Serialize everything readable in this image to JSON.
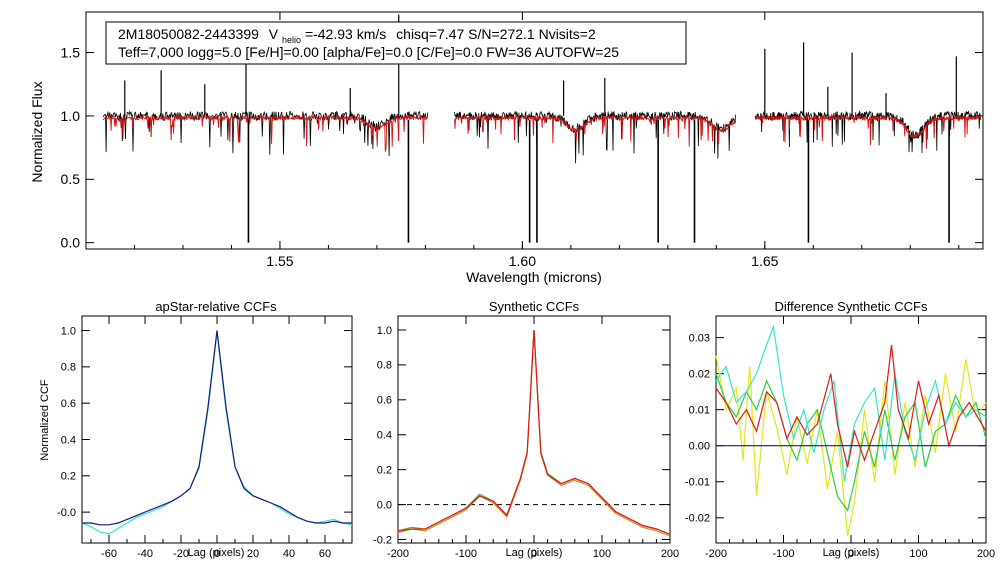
{
  "star": {
    "line1_id": "2M18050082-2443399",
    "v_prefix": "V",
    "v_sub": "helio",
    "v_value": "=-42.93 km/s",
    "line1_rest": "chisq=7.47  S/N=272.1  Nvisits=2",
    "line2": "Teff=7,000 logg=5.0 [Fe/H]=0.00 [alpha/Fe]=0.0 [C/Fe]=0.0 FW=36 AUTOFW=25"
  },
  "colors": {
    "observed": "#000000",
    "model": "#dd1111",
    "visit_cyan": "#33e6cc",
    "visit_navy": "#1a1a80",
    "yellow": "#e5e51a",
    "green": "#2ecc40",
    "orange": "#e08020",
    "red": "#e01818",
    "zero_line": "#000000"
  },
  "chart_data": [
    {
      "type": "line",
      "id": "spectrum",
      "xlabel": "Wavelength (microns)",
      "ylabel": "Normalized Flux",
      "xlim": [
        1.51,
        1.695
      ],
      "ylim": [
        -0.05,
        1.82
      ],
      "xticks": [
        1.55,
        1.6,
        1.65
      ],
      "xtick_labels": [
        "1.55",
        "1.60",
        "1.65"
      ],
      "yticks": [
        0.0,
        0.5,
        1.0,
        1.5
      ],
      "ytick_labels": [
        "0.0",
        "0.5",
        "1.0",
        "1.5"
      ],
      "chips": [
        [
          1.5135,
          1.5805
        ],
        [
          1.586,
          1.644
        ],
        [
          1.648,
          1.6945
        ]
      ],
      "series": [
        {
          "name": "observed",
          "color_key": "observed",
          "continuum": 1.0
        },
        {
          "name": "model",
          "color_key": "model",
          "continuum": 1.0
        }
      ],
      "deep_lines": [
        {
          "x": 1.5435,
          "y": 0.0
        },
        {
          "x": 1.5765,
          "y": 0.0
        },
        {
          "x": 1.6015,
          "y": 0.0
        },
        {
          "x": 1.603,
          "y": 0.0
        },
        {
          "x": 1.628,
          "y": 0.0
        },
        {
          "x": 1.6355,
          "y": 0.0
        },
        {
          "x": 1.659,
          "y": 0.0
        },
        {
          "x": 1.688,
          "y": 0.0
        }
      ],
      "emission_spikes": [
        {
          "x": 1.518,
          "y": 1.28
        },
        {
          "x": 1.5255,
          "y": 1.36
        },
        {
          "x": 1.5345,
          "y": 1.25
        },
        {
          "x": 1.543,
          "y": 1.52
        },
        {
          "x": 1.5645,
          "y": 1.22
        },
        {
          "x": 1.5745,
          "y": 1.8
        },
        {
          "x": 1.6085,
          "y": 1.28
        },
        {
          "x": 1.617,
          "y": 1.3
        },
        {
          "x": 1.65,
          "y": 1.53
        },
        {
          "x": 1.658,
          "y": 1.58
        },
        {
          "x": 1.663,
          "y": 1.23
        },
        {
          "x": 1.668,
          "y": 1.5
        },
        {
          "x": 1.6895,
          "y": 1.47
        },
        {
          "x": 1.675,
          "y": 1.18
        }
      ],
      "broad_dips": [
        {
          "x": 1.57,
          "y": 0.92
        },
        {
          "x": 1.611,
          "y": 0.9
        },
        {
          "x": 1.641,
          "y": 0.9
        },
        {
          "x": 1.681,
          "y": 0.85
        }
      ]
    },
    {
      "type": "line",
      "id": "apstar",
      "title": "apStar-relative CCFs",
      "xlabel": "Lag (pixels)",
      "ylabel": "Normalized CCF",
      "xlim": [
        -75,
        75
      ],
      "ylim": [
        -0.17,
        1.08
      ],
      "xticks": [
        -60,
        -40,
        -20,
        0,
        20,
        40,
        60
      ],
      "xtick_labels": [
        "-60",
        "-40",
        "-20",
        "0",
        "20",
        "40",
        "60"
      ],
      "yticks": [
        0.0,
        0.2,
        0.4,
        0.6,
        0.8,
        1.0
      ],
      "ytick_labels": [
        "-0.0",
        "0.2",
        "0.4",
        "0.6",
        "0.8",
        "1.0"
      ],
      "series": [
        {
          "name": "visit 1",
          "color_key": "visit_cyan",
          "x": [
            -75,
            -70,
            -65,
            -60,
            -55,
            -50,
            -45,
            -40,
            -35,
            -30,
            -25,
            -20,
            -15,
            -10,
            -5,
            0,
            5,
            10,
            15,
            20,
            25,
            30,
            35,
            40,
            45,
            50,
            55,
            60,
            65,
            70,
            75
          ],
          "y": [
            -0.06,
            -0.08,
            -0.11,
            -0.12,
            -0.09,
            -0.06,
            -0.03,
            -0.01,
            0.01,
            0.03,
            0.06,
            0.09,
            0.13,
            0.24,
            0.56,
            0.99,
            0.56,
            0.25,
            0.14,
            0.09,
            0.07,
            0.05,
            0.02,
            -0.01,
            -0.03,
            -0.05,
            -0.06,
            -0.05,
            -0.04,
            -0.06,
            -0.07
          ]
        },
        {
          "name": "visit 2",
          "color_key": "visit_navy",
          "x": [
            -75,
            -70,
            -65,
            -60,
            -55,
            -50,
            -45,
            -40,
            -35,
            -30,
            -25,
            -20,
            -15,
            -10,
            -5,
            0,
            5,
            10,
            15,
            20,
            25,
            30,
            35,
            40,
            45,
            50,
            55,
            60,
            65,
            70,
            75
          ],
          "y": [
            -0.06,
            -0.06,
            -0.07,
            -0.07,
            -0.06,
            -0.04,
            -0.02,
            0.0,
            0.02,
            0.04,
            0.06,
            0.09,
            0.13,
            0.25,
            0.58,
            1.0,
            0.58,
            0.25,
            0.13,
            0.09,
            0.07,
            0.05,
            0.03,
            0.0,
            -0.03,
            -0.05,
            -0.06,
            -0.06,
            -0.05,
            -0.06,
            -0.06
          ]
        }
      ]
    },
    {
      "type": "line",
      "id": "synthetic",
      "title": "Synthetic CCFs",
      "xlabel": "Lag (pixels)",
      "xlim": [
        -200,
        200
      ],
      "ylim": [
        -0.22,
        1.08
      ],
      "xticks": [
        -200,
        -100,
        0,
        100,
        200
      ],
      "xtick_labels": [
        "-200",
        "-100",
        "0",
        "100",
        "200"
      ],
      "yticks": [
        -0.2,
        0.0,
        0.2,
        0.4,
        0.6,
        0.8,
        1.0
      ],
      "ytick_labels": [
        "-0.2",
        "0.0",
        "0.2",
        "0.4",
        "0.6",
        "0.8",
        "1.0"
      ],
      "zero_line": 0.0,
      "series": [
        {
          "name": "model green",
          "color_key": "green",
          "x": [
            -200,
            -180,
            -160,
            -140,
            -120,
            -100,
            -80,
            -60,
            -40,
            -20,
            -10,
            0,
            10,
            20,
            40,
            60,
            80,
            100,
            120,
            140,
            160,
            180,
            200
          ],
          "y": [
            -0.15,
            -0.13,
            -0.14,
            -0.1,
            -0.06,
            -0.02,
            0.06,
            0.02,
            -0.06,
            0.15,
            0.3,
            1.0,
            0.3,
            0.18,
            0.12,
            0.15,
            0.12,
            0.04,
            -0.04,
            -0.08,
            -0.12,
            -0.14,
            -0.17
          ]
        },
        {
          "name": "model orange",
          "color_key": "orange",
          "x": [
            -200,
            -180,
            -160,
            -140,
            -120,
            -100,
            -80,
            -60,
            -40,
            -20,
            -10,
            0,
            10,
            20,
            40,
            60,
            80,
            100,
            120,
            140,
            160,
            180,
            200
          ],
          "y": [
            -0.16,
            -0.14,
            -0.15,
            -0.11,
            -0.07,
            -0.03,
            0.05,
            0.01,
            -0.07,
            0.14,
            0.29,
            1.0,
            0.29,
            0.17,
            0.11,
            0.14,
            0.11,
            0.03,
            -0.05,
            -0.09,
            -0.13,
            -0.15,
            -0.18
          ]
        },
        {
          "name": "model red",
          "color_key": "red",
          "x": [
            -200,
            -180,
            -160,
            -140,
            -120,
            -100,
            -80,
            -60,
            -40,
            -20,
            -10,
            0,
            10,
            20,
            40,
            60,
            80,
            100,
            120,
            140,
            160,
            180,
            200
          ],
          "y": [
            -0.15,
            -0.14,
            -0.14,
            -0.1,
            -0.06,
            -0.02,
            0.05,
            0.02,
            -0.06,
            0.15,
            0.3,
            1.0,
            0.3,
            0.17,
            0.12,
            0.15,
            0.12,
            0.04,
            -0.04,
            -0.08,
            -0.12,
            -0.14,
            -0.17
          ]
        }
      ]
    },
    {
      "type": "line",
      "id": "difference",
      "title": "Difference Synthetic CCFs",
      "xlabel": "Lag (pixels)",
      "xlim": [
        -200,
        200
      ],
      "ylim": [
        -0.027,
        0.036
      ],
      "xticks": [
        -200,
        -100,
        0,
        100,
        200
      ],
      "xtick_labels": [
        "-200",
        "-100",
        "0",
        "100",
        "200"
      ],
      "yticks": [
        -0.02,
        -0.01,
        0.0,
        0.01,
        0.02,
        0.03
      ],
      "ytick_labels": [
        "-0.02",
        "-0.01",
        "0.00",
        "0.01",
        "0.02",
        "0.03"
      ],
      "series": [
        {
          "name": "yellow",
          "color_key": "yellow",
          "x": [
            -200,
            -185,
            -170,
            -160,
            -150,
            -140,
            -125,
            -110,
            -95,
            -80,
            -65,
            -50,
            -35,
            -20,
            -5,
            5,
            20,
            35,
            50,
            65,
            80,
            95,
            110,
            125,
            140,
            155,
            170,
            185,
            200
          ],
          "y": [
            0.025,
            0.01,
            0.016,
            -0.004,
            0.022,
            -0.014,
            0.015,
            0.005,
            -0.008,
            0.008,
            -0.005,
            0.01,
            -0.012,
            0.004,
            -0.025,
            -0.016,
            0.01,
            -0.01,
            0.018,
            -0.008,
            0.012,
            -0.006,
            0.014,
            -0.002,
            0.02,
            0.004,
            0.024,
            0.008,
            0.012
          ]
        },
        {
          "name": "green",
          "color_key": "green",
          "x": [
            -200,
            -185,
            -170,
            -155,
            -140,
            -125,
            -110,
            -95,
            -80,
            -65,
            -50,
            -35,
            -20,
            -5,
            5,
            20,
            35,
            50,
            65,
            80,
            95,
            110,
            125,
            140,
            155,
            170,
            185,
            200
          ],
          "y": [
            0.02,
            0.012,
            0.008,
            0.015,
            0.01,
            0.018,
            0.012,
            0.002,
            -0.004,
            0.006,
            0.01,
            -0.002,
            -0.014,
            -0.018,
            -0.01,
            0.004,
            -0.006,
            0.01,
            -0.004,
            0.008,
            0.012,
            -0.006,
            0.004,
            0.006,
            0.014,
            0.008,
            0.012,
            0.002
          ]
        },
        {
          "name": "cyan",
          "color_key": "visit_cyan",
          "x": [
            -200,
            -185,
            -170,
            -155,
            -140,
            -125,
            -115,
            -100,
            -85,
            -70,
            -55,
            -40,
            -25,
            -10,
            5,
            20,
            35,
            50,
            65,
            80,
            95,
            110,
            125,
            140,
            155,
            170,
            185,
            200
          ],
          "y": [
            0.018,
            0.022,
            0.012,
            0.015,
            0.02,
            0.028,
            0.033,
            0.014,
            0.002,
            0.01,
            -0.002,
            0.01,
            0.018,
            -0.01,
            0.006,
            0.012,
            0.016,
            -0.004,
            0.02,
            0.004,
            -0.004,
            0.01,
            0.018,
            0.006,
            0.012,
            0.008,
            0.01,
            0.008
          ]
        },
        {
          "name": "red",
          "color_key": "red",
          "x": [
            -200,
            -185,
            -170,
            -155,
            -140,
            -125,
            -110,
            -95,
            -80,
            -65,
            -50,
            -30,
            -20,
            -5,
            5,
            20,
            35,
            50,
            60,
            70,
            85,
            100,
            115,
            130,
            145,
            160,
            175,
            200
          ],
          "y": [
            0.016,
            0.012,
            0.006,
            0.01,
            0.004,
            0.015,
            0.012,
            0.002,
            0.008,
            0.003,
            0.006,
            0.02,
            0.006,
            -0.006,
            0.004,
            -0.004,
            0.004,
            0.012,
            0.028,
            0.01,
            0.002,
            0.018,
            0.006,
            0.014,
            0.0,
            0.008,
            0.012,
            0.004
          ]
        },
        {
          "name": "navy",
          "color_key": "visit_navy",
          "x": [
            -200,
            200
          ],
          "y": [
            0.0,
            0.0
          ]
        }
      ]
    }
  ]
}
